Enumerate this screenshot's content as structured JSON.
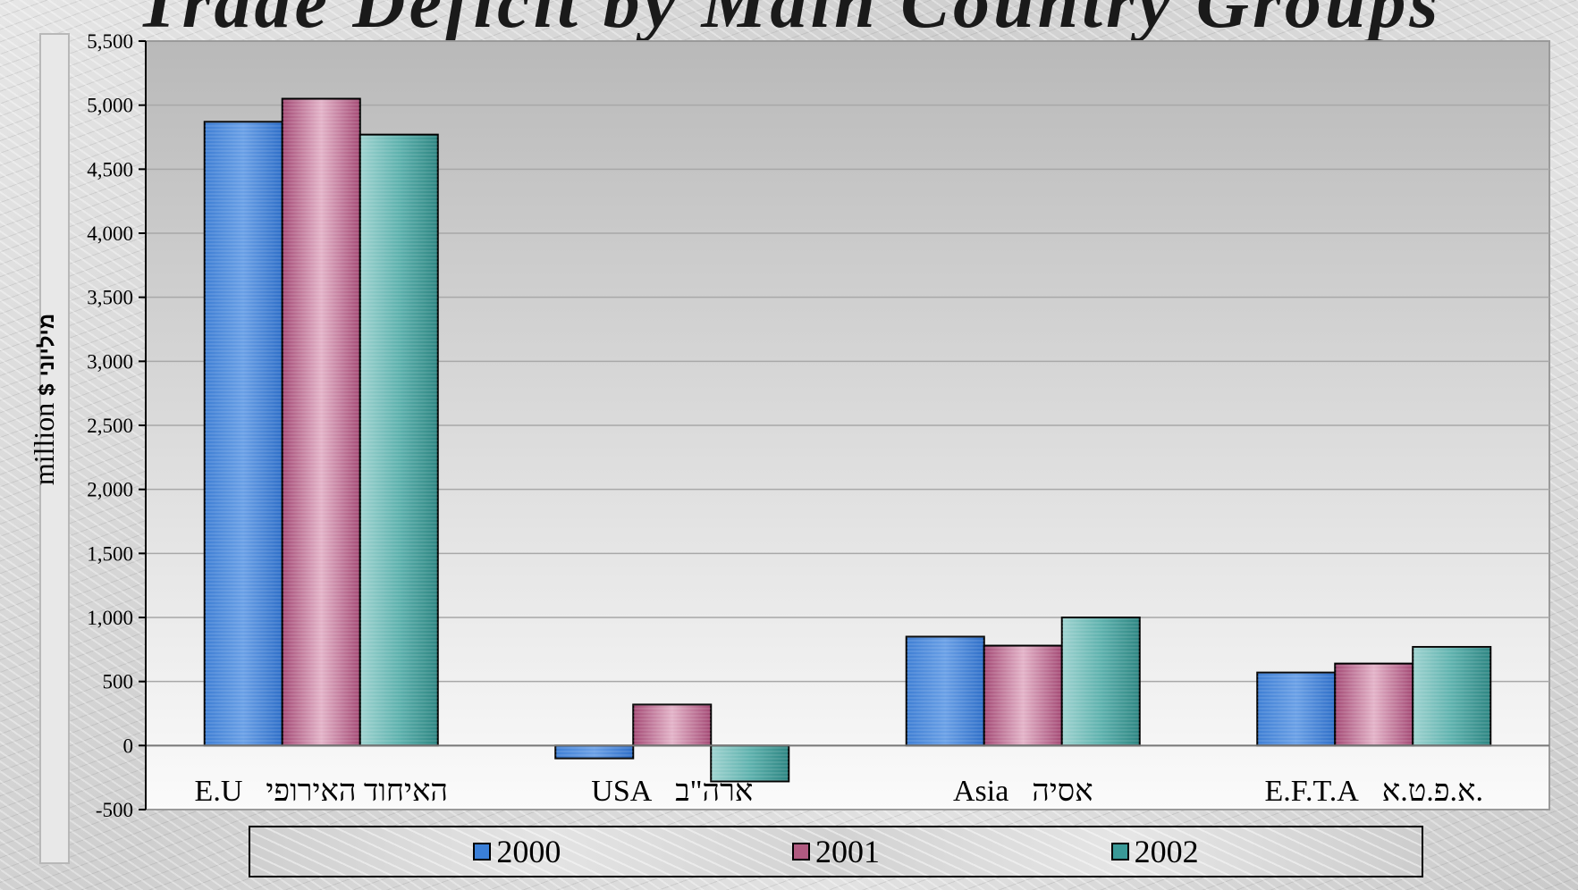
{
  "page": {
    "title": "Trade Deficit by Main Country Groups"
  },
  "chart_data": {
    "type": "bar",
    "title": "Trade Deficit by Main Country Groups",
    "ylabel_en": "million",
    "ylabel_symbol": "$",
    "ylabel_he": "מיליוני",
    "xlabel": "",
    "ylim": [
      -500,
      5500
    ],
    "yticks": [
      -500,
      0,
      500,
      1000,
      1500,
      2000,
      2500,
      3000,
      3500,
      4000,
      4500,
      5000,
      5500
    ],
    "ytick_labels": [
      "-500",
      "0",
      "500",
      "1,000",
      "1,500",
      "2,000",
      "2,500",
      "3,000",
      "3,500",
      "4,000",
      "4,500",
      "5,000",
      "5,500"
    ],
    "grid": true,
    "legend_position": "bottom",
    "categories": [
      {
        "en": "E.U",
        "he": "האיחוד האירופי"
      },
      {
        "en": "USA",
        "he": "ארה\"ב"
      },
      {
        "en": "Asia",
        "he": "אסיה"
      },
      {
        "en": "E.F.T.A",
        "he": "א.פ.ט.א."
      }
    ],
    "series": [
      {
        "name": "2000",
        "color": "#3a7fd8",
        "values": [
          4870,
          -100,
          850,
          570
        ]
      },
      {
        "name": "2001",
        "color": "#b05a80",
        "values": [
          5050,
          320,
          780,
          640
        ]
      },
      {
        "name": "2002",
        "color": "#3a9a98",
        "values": [
          4770,
          -280,
          1000,
          770
        ]
      }
    ]
  }
}
